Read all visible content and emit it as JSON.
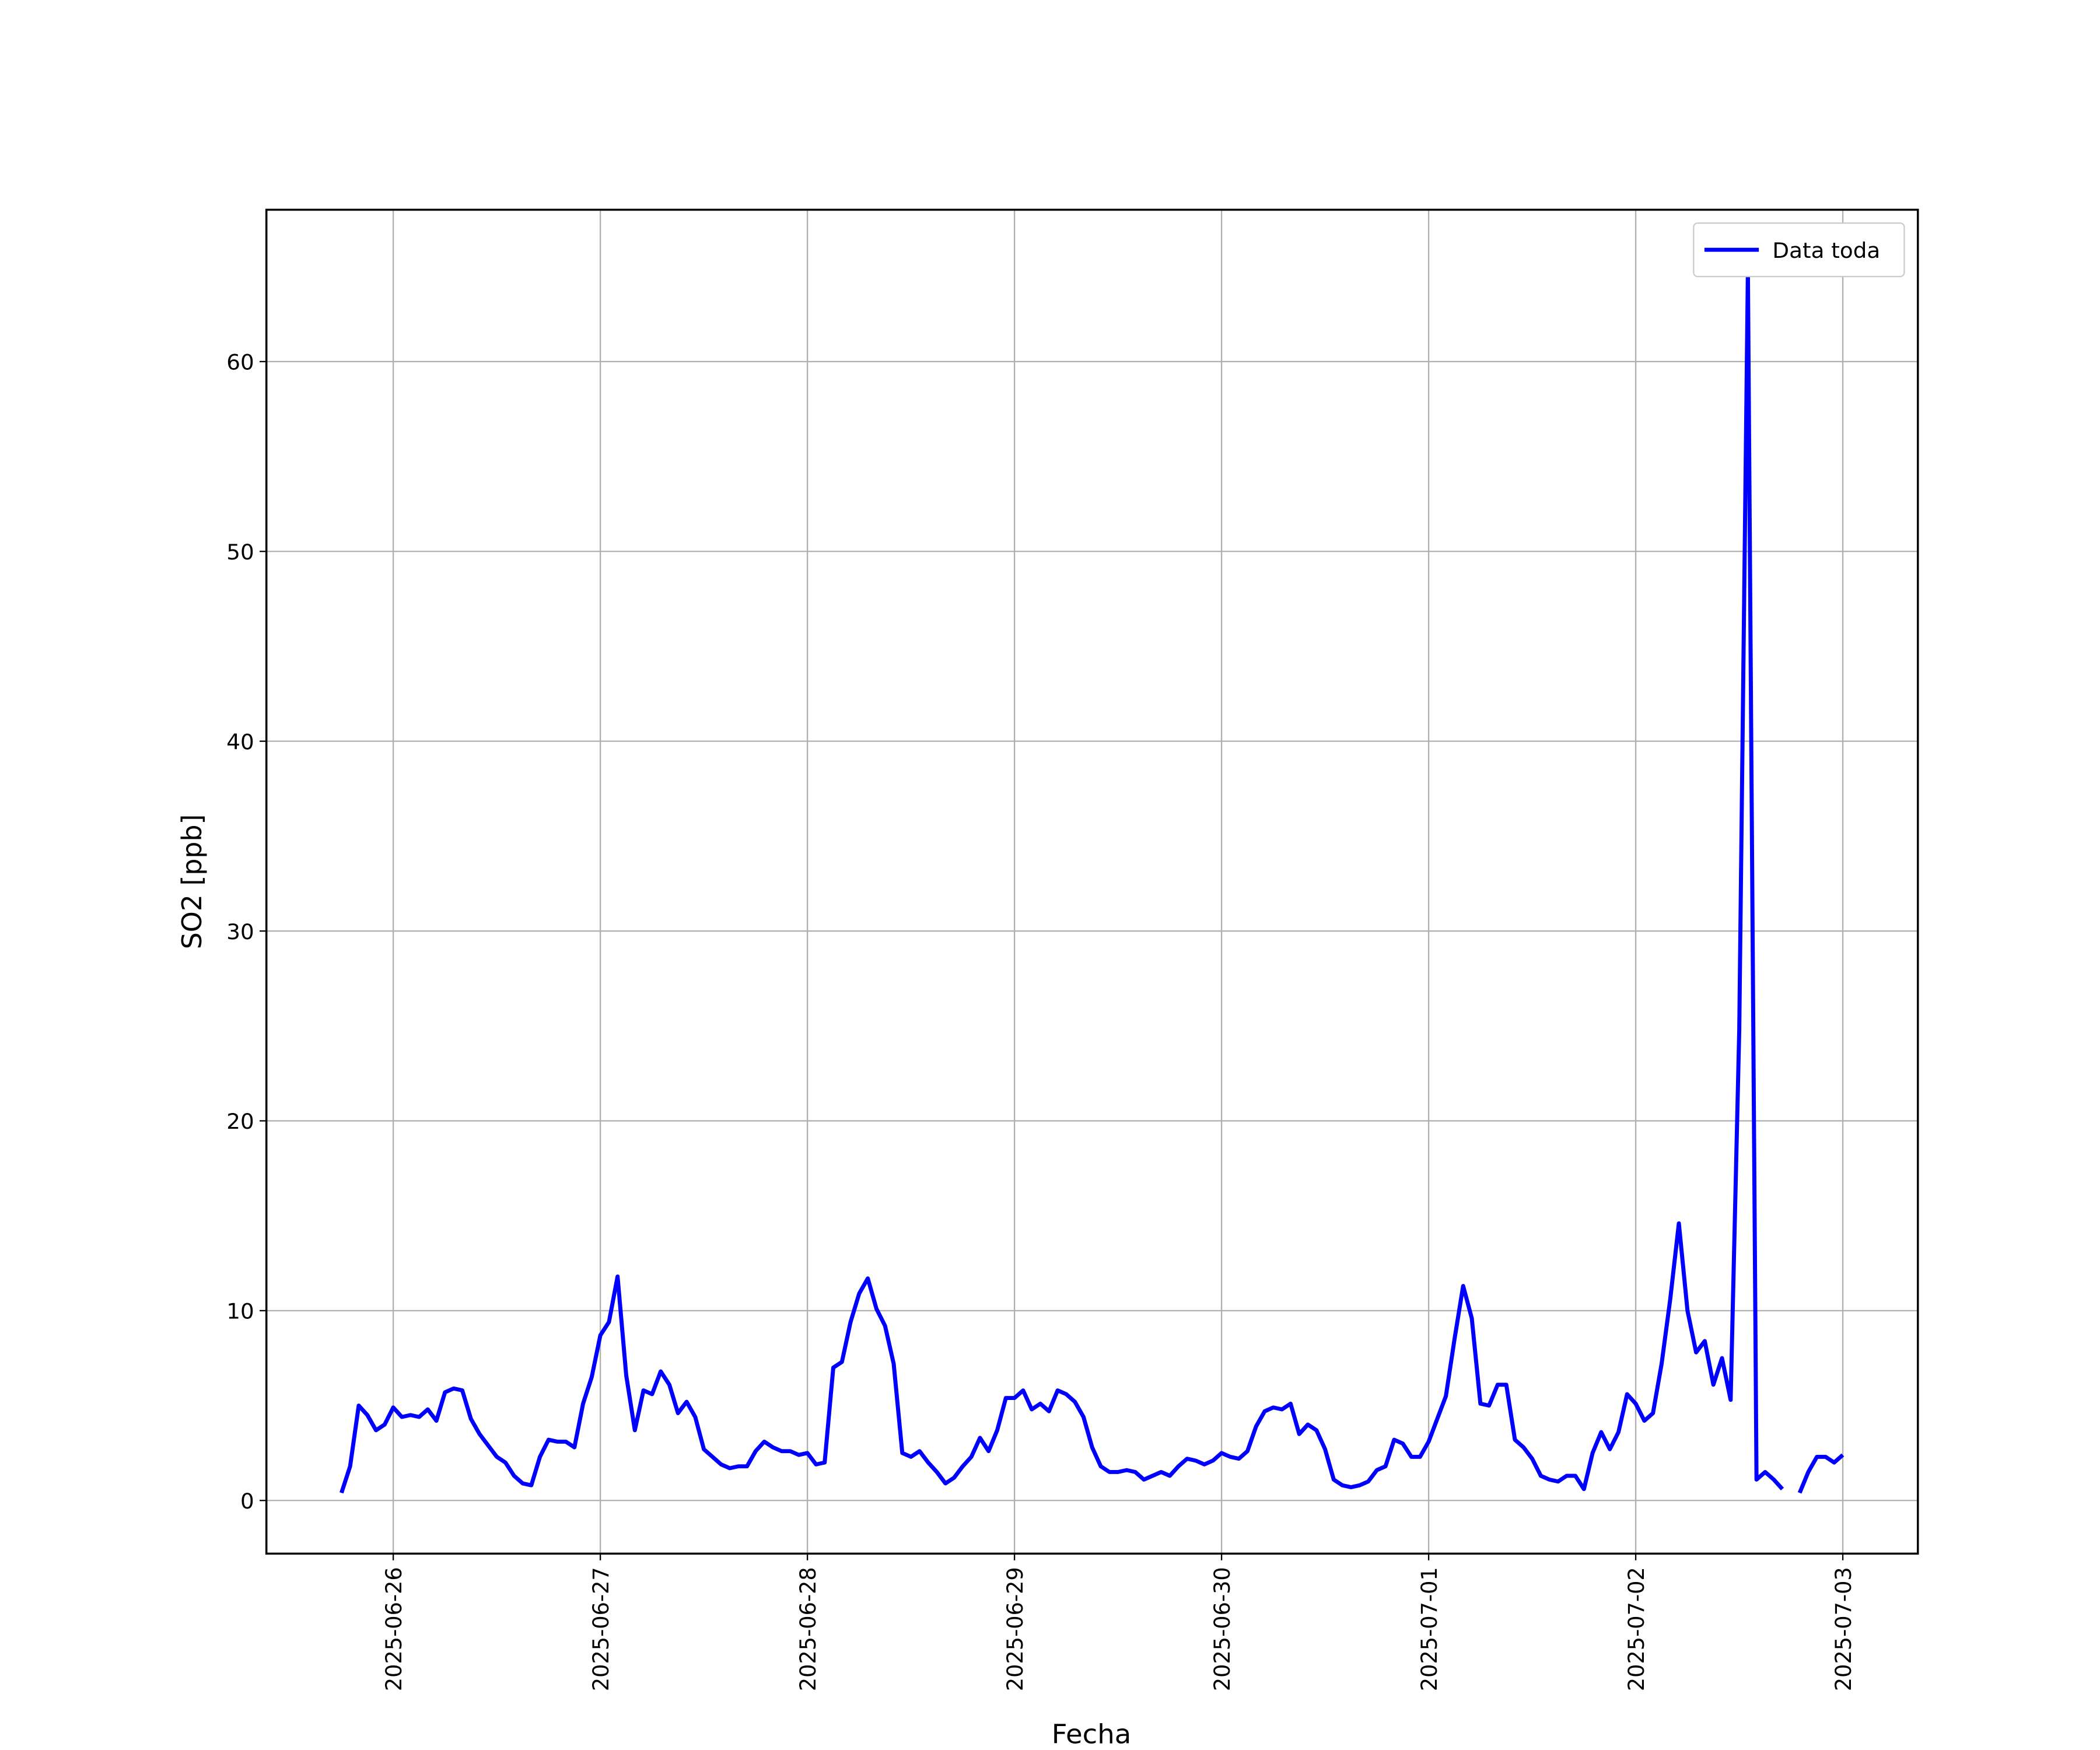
{
  "chart_data": {
    "type": "line",
    "xlabel": "Fecha",
    "ylabel": "SO2 [ppb]",
    "x": [
      "2025-06-25T18:00",
      "2025-06-25T19:00",
      "2025-06-25T20:00",
      "2025-06-25T21:00",
      "2025-06-25T22:00",
      "2025-06-25T23:00",
      "2025-06-26T00:00",
      "2025-06-26T01:00",
      "2025-06-26T02:00",
      "2025-06-26T03:00",
      "2025-06-26T04:00",
      "2025-06-26T05:00",
      "2025-06-26T06:00",
      "2025-06-26T07:00",
      "2025-06-26T08:00",
      "2025-06-26T09:00",
      "2025-06-26T10:00",
      "2025-06-26T11:00",
      "2025-06-26T12:00",
      "2025-06-26T13:00",
      "2025-06-26T14:00",
      "2025-06-26T15:00",
      "2025-06-26T16:00",
      "2025-06-26T17:00",
      "2025-06-26T18:00",
      "2025-06-26T19:00",
      "2025-06-26T20:00",
      "2025-06-26T21:00",
      "2025-06-26T22:00",
      "2025-06-26T23:00",
      "2025-06-27T00:00",
      "2025-06-27T01:00",
      "2025-06-27T02:00",
      "2025-06-27T03:00",
      "2025-06-27T04:00",
      "2025-06-27T05:00",
      "2025-06-27T06:00",
      "2025-06-27T07:00",
      "2025-06-27T08:00",
      "2025-06-27T09:00",
      "2025-06-27T10:00",
      "2025-06-27T11:00",
      "2025-06-27T12:00",
      "2025-06-27T13:00",
      "2025-06-27T14:00",
      "2025-06-27T15:00",
      "2025-06-27T16:00",
      "2025-06-27T17:00",
      "2025-06-27T18:00",
      "2025-06-27T19:00",
      "2025-06-27T20:00",
      "2025-06-27T21:00",
      "2025-06-27T22:00",
      "2025-06-27T23:00",
      "2025-06-28T00:00",
      "2025-06-28T01:00",
      "2025-06-28T02:00",
      "2025-06-28T03:00",
      "2025-06-28T04:00",
      "2025-06-28T05:00",
      "2025-06-28T06:00",
      "2025-06-28T07:00",
      "2025-06-28T08:00",
      "2025-06-28T09:00",
      "2025-06-28T10:00",
      "2025-06-28T11:00",
      "2025-06-28T12:00",
      "2025-06-28T13:00",
      "2025-06-28T14:00",
      "2025-06-28T15:00",
      "2025-06-28T16:00",
      "2025-06-28T17:00",
      "2025-06-28T18:00",
      "2025-06-28T19:00",
      "2025-06-28T20:00",
      "2025-06-28T21:00",
      "2025-06-28T22:00",
      "2025-06-28T23:00",
      "2025-06-29T00:00",
      "2025-06-29T01:00",
      "2025-06-29T02:00",
      "2025-06-29T03:00",
      "2025-06-29T04:00",
      "2025-06-29T05:00",
      "2025-06-29T06:00",
      "2025-06-29T07:00",
      "2025-06-29T08:00",
      "2025-06-29T09:00",
      "2025-06-29T10:00",
      "2025-06-29T11:00",
      "2025-06-29T12:00",
      "2025-06-29T13:00",
      "2025-06-29T14:00",
      "2025-06-29T15:00",
      "2025-06-29T16:00",
      "2025-06-29T17:00",
      "2025-06-29T18:00",
      "2025-06-29T19:00",
      "2025-06-29T20:00",
      "2025-06-29T21:00",
      "2025-06-29T22:00",
      "2025-06-29T23:00",
      "2025-06-30T00:00",
      "2025-06-30T01:00",
      "2025-06-30T02:00",
      "2025-06-30T03:00",
      "2025-06-30T04:00",
      "2025-06-30T05:00",
      "2025-06-30T06:00",
      "2025-06-30T07:00",
      "2025-06-30T08:00",
      "2025-06-30T09:00",
      "2025-06-30T10:00",
      "2025-06-30T11:00",
      "2025-06-30T12:00",
      "2025-06-30T13:00",
      "2025-06-30T14:00",
      "2025-06-30T15:00",
      "2025-06-30T16:00",
      "2025-06-30T17:00",
      "2025-06-30T18:00",
      "2025-06-30T19:00",
      "2025-06-30T20:00",
      "2025-06-30T21:00",
      "2025-06-30T22:00",
      "2025-06-30T23:00",
      "2025-07-01T00:00",
      "2025-07-01T01:00",
      "2025-07-01T02:00",
      "2025-07-01T03:00",
      "2025-07-01T04:00",
      "2025-07-01T05:00",
      "2025-07-01T06:00",
      "2025-07-01T07:00",
      "2025-07-01T08:00",
      "2025-07-01T09:00",
      "2025-07-01T10:00",
      "2025-07-01T11:00",
      "2025-07-01T12:00",
      "2025-07-01T13:00",
      "2025-07-01T14:00",
      "2025-07-01T15:00",
      "2025-07-01T16:00",
      "2025-07-01T17:00",
      "2025-07-01T18:00",
      "2025-07-01T19:00",
      "2025-07-01T20:00",
      "2025-07-01T21:00",
      "2025-07-01T22:00",
      "2025-07-01T23:00",
      "2025-07-02T00:00",
      "2025-07-02T01:00",
      "2025-07-02T02:00",
      "2025-07-02T03:00",
      "2025-07-02T04:00",
      "2025-07-02T05:00",
      "2025-07-02T06:00",
      "2025-07-02T07:00",
      "2025-07-02T08:00",
      "2025-07-02T09:00",
      "2025-07-02T10:00",
      "2025-07-02T11:00",
      "2025-07-02T12:00",
      "2025-07-02T13:00",
      "2025-07-02T14:00",
      "2025-07-02T15:00",
      "2025-07-02T16:00",
      "2025-07-02T17:00",
      "2025-07-02T18:00",
      "2025-07-02T19:00",
      "2025-07-02T20:00",
      "2025-07-02T21:00",
      "2025-07-02T22:00",
      "2025-07-02T23:00",
      "2025-07-03T00:00"
    ],
    "series": [
      {
        "name": "Data toda",
        "color": "#0000ff",
        "values": [
          0.4,
          1.8,
          5.0,
          4.5,
          3.7,
          4.0,
          4.9,
          4.4,
          4.5,
          4.4,
          4.8,
          4.2,
          5.7,
          5.9,
          5.8,
          4.3,
          3.5,
          2.9,
          2.3,
          2.0,
          1.3,
          0.9,
          0.8,
          2.3,
          3.2,
          3.1,
          3.1,
          2.8,
          5.1,
          6.5,
          8.7,
          9.4,
          11.8,
          6.6,
          3.7,
          5.8,
          5.6,
          6.8,
          6.1,
          4.6,
          5.2,
          4.4,
          2.7,
          2.3,
          1.9,
          1.7,
          1.8,
          1.8,
          2.6,
          3.1,
          2.8,
          2.6,
          2.6,
          2.4,
          2.5,
          1.9,
          2.0,
          7.0,
          7.3,
          9.4,
          10.9,
          11.7,
          10.1,
          9.2,
          7.2,
          2.5,
          2.3,
          2.6,
          2.0,
          1.5,
          0.9,
          1.2,
          1.8,
          2.3,
          3.3,
          2.6,
          3.7,
          5.4,
          5.4,
          5.8,
          4.8,
          5.1,
          4.7,
          5.8,
          5.6,
          5.2,
          4.4,
          2.8,
          1.8,
          1.5,
          1.5,
          1.6,
          1.5,
          1.1,
          1.3,
          1.5,
          1.3,
          1.8,
          2.2,
          2.1,
          1.9,
          2.1,
          2.5,
          2.3,
          2.2,
          2.6,
          3.9,
          4.7,
          4.9,
          4.8,
          5.1,
          3.5,
          4.0,
          3.7,
          2.7,
          1.1,
          0.8,
          0.7,
          0.8,
          1.0,
          1.6,
          1.8,
          3.2,
          3.0,
          2.3,
          2.3,
          3.1,
          4.3,
          5.5,
          8.5,
          11.3,
          9.6,
          5.1,
          5.0,
          6.1,
          6.1,
          3.2,
          2.8,
          2.2,
          1.3,
          1.1,
          1.0,
          1.3,
          1.3,
          0.6,
          2.5,
          3.6,
          2.7,
          3.6,
          5.6,
          5.1,
          4.2,
          4.6,
          7.2,
          10.6,
          14.6,
          10.0,
          7.8,
          8.4,
          6.1,
          7.5,
          5.3,
          24.8,
          64.8,
          1.1,
          1.5,
          1.1,
          0.6,
          null,
          0.4,
          1.5,
          2.3,
          2.3,
          2.0,
          2.4
        ]
      }
    ],
    "xlim": [
      "2025-06-25T09:18",
      "2025-07-03T08:42"
    ],
    "xticks": [
      "2025-06-26",
      "2025-06-27",
      "2025-06-28",
      "2025-06-29",
      "2025-06-30",
      "2025-07-01",
      "2025-07-02",
      "2025-07-03"
    ],
    "ylim": [
      -2.8,
      68.0
    ],
    "yticks": [
      0,
      10,
      20,
      30,
      40,
      50,
      60
    ],
    "grid": true,
    "legend": "upper right"
  }
}
